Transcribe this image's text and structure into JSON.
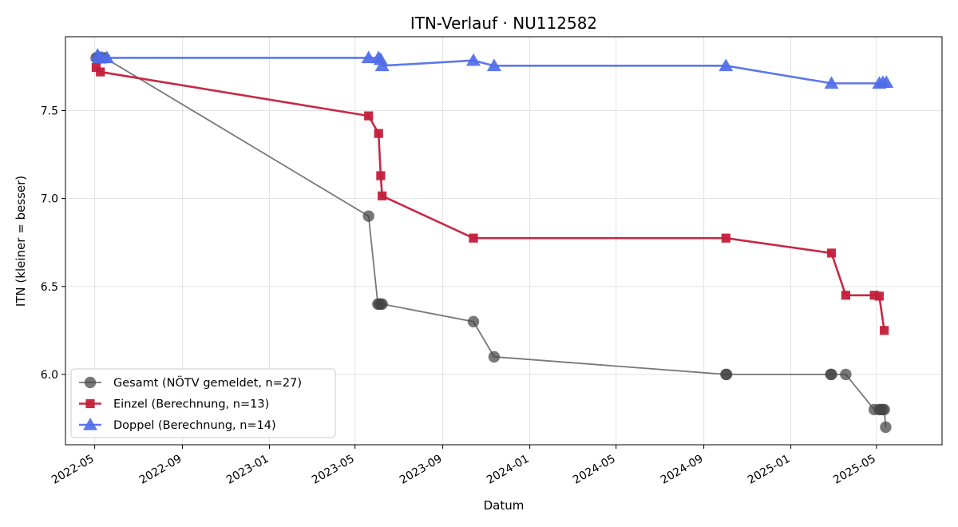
{
  "chart_data": {
    "type": "line",
    "title": "ITN-Verlauf · NU112582",
    "xlabel": "Datum",
    "ylabel": "ITN  (kleiner = besser)",
    "x_axis": "date",
    "xlim": [
      "2022-03-21",
      "2025-08-01"
    ],
    "ylim": [
      5.6,
      7.92
    ],
    "x_ticks": [
      "2022-05-01",
      "2022-09-01",
      "2023-01-01",
      "2023-05-01",
      "2023-09-01",
      "2024-01-01",
      "2024-05-01",
      "2024-09-01",
      "2025-01-01",
      "2025-05-01"
    ],
    "x_tick_labels": [
      "2022-05",
      "2022-09",
      "2023-01",
      "2023-05",
      "2023-09",
      "2024-01",
      "2024-05",
      "2024-09",
      "2025-01",
      "2025-05"
    ],
    "y_ticks": [
      6.0,
      6.5,
      7.0,
      7.5
    ],
    "y_tick_labels": [
      "6.0",
      "6.5",
      "7.0",
      "7.5"
    ],
    "grid": true,
    "legend_position": "lower-left",
    "series": [
      {
        "name": "Gesamt (NÖTV gemeldet, n=27)",
        "color": "#444444",
        "marker": "circle",
        "points": [
          {
            "x": "2022-05-03",
            "y": 7.8
          },
          {
            "x": "2022-05-05",
            "y": 7.8
          },
          {
            "x": "2022-05-08",
            "y": 7.8
          },
          {
            "x": "2022-05-11",
            "y": 7.8
          },
          {
            "x": "2022-05-15",
            "y": 7.8
          },
          {
            "x": "2023-05-20",
            "y": 6.9
          },
          {
            "x": "2023-06-02",
            "y": 6.4
          },
          {
            "x": "2023-06-04",
            "y": 6.4
          },
          {
            "x": "2023-06-06",
            "y": 6.4
          },
          {
            "x": "2023-06-08",
            "y": 6.4
          },
          {
            "x": "2023-10-14",
            "y": 6.3
          },
          {
            "x": "2023-11-12",
            "y": 6.1
          },
          {
            "x": "2024-10-02",
            "y": 6.0
          },
          {
            "x": "2024-10-03",
            "y": 6.0
          },
          {
            "x": "2025-02-26",
            "y": 6.0
          },
          {
            "x": "2025-02-27",
            "y": 6.0
          },
          {
            "x": "2025-03-19",
            "y": 6.0
          },
          {
            "x": "2025-04-28",
            "y": 5.8
          },
          {
            "x": "2025-05-05",
            "y": 5.8
          },
          {
            "x": "2025-05-07",
            "y": 5.8
          },
          {
            "x": "2025-05-10",
            "y": 5.8
          },
          {
            "x": "2025-05-12",
            "y": 5.8
          },
          {
            "x": "2025-05-14",
            "y": 5.7
          }
        ]
      },
      {
        "name": "Einzel (Berechnung, n=13)",
        "color": "#c41e3a",
        "marker": "square",
        "points": [
          {
            "x": "2022-05-03",
            "y": 7.745
          },
          {
            "x": "2022-05-09",
            "y": 7.72
          },
          {
            "x": "2023-05-20",
            "y": 7.47
          },
          {
            "x": "2023-06-03",
            "y": 7.37
          },
          {
            "x": "2023-06-06",
            "y": 7.13
          },
          {
            "x": "2023-06-08",
            "y": 7.015
          },
          {
            "x": "2023-10-14",
            "y": 6.775
          },
          {
            "x": "2024-10-02",
            "y": 6.775
          },
          {
            "x": "2025-02-27",
            "y": 6.69
          },
          {
            "x": "2025-03-19",
            "y": 6.45
          },
          {
            "x": "2025-04-28",
            "y": 6.45
          },
          {
            "x": "2025-05-05",
            "y": 6.445
          },
          {
            "x": "2025-05-12",
            "y": 6.25
          }
        ]
      },
      {
        "name": "Doppel (Berechnung, n=14)",
        "color": "#4f6de8",
        "marker": "triangle",
        "points": [
          {
            "x": "2022-05-05",
            "y": 7.815
          },
          {
            "x": "2022-05-08",
            "y": 7.8
          },
          {
            "x": "2022-05-11",
            "y": 7.8
          },
          {
            "x": "2022-05-18",
            "y": 7.8
          },
          {
            "x": "2023-05-20",
            "y": 7.8
          },
          {
            "x": "2023-06-03",
            "y": 7.8
          },
          {
            "x": "2023-06-06",
            "y": 7.79
          },
          {
            "x": "2023-06-08",
            "y": 7.755
          },
          {
            "x": "2023-10-14",
            "y": 7.785
          },
          {
            "x": "2023-11-12",
            "y": 7.755
          },
          {
            "x": "2024-10-02",
            "y": 7.755
          },
          {
            "x": "2025-02-27",
            "y": 7.655
          },
          {
            "x": "2025-05-05",
            "y": 7.655
          },
          {
            "x": "2025-05-10",
            "y": 7.66
          },
          {
            "x": "2025-05-15",
            "y": 7.66
          }
        ]
      }
    ]
  }
}
